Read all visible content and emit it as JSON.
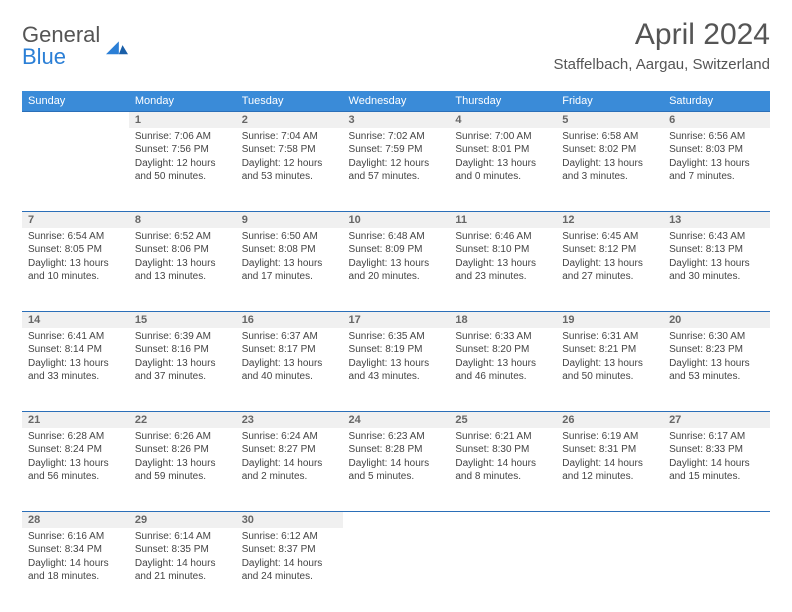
{
  "logo": {
    "word1": "General",
    "word2": "Blue"
  },
  "title": "April 2024",
  "location": "Staffelbach, Aargau, Switzerland",
  "colors": {
    "header_bg": "#3a8bd8",
    "header_text": "#ffffff",
    "daynum_bg": "#f0f0f0",
    "row_border": "#2b6fb8",
    "text": "#444444",
    "logo_blue": "#2b7fd6"
  },
  "weekdays": [
    "Sunday",
    "Monday",
    "Tuesday",
    "Wednesday",
    "Thursday",
    "Friday",
    "Saturday"
  ],
  "weeks": [
    [
      null,
      {
        "n": "1",
        "sr": "7:06 AM",
        "ss": "7:56 PM",
        "dl": "12 hours and 50 minutes."
      },
      {
        "n": "2",
        "sr": "7:04 AM",
        "ss": "7:58 PM",
        "dl": "12 hours and 53 minutes."
      },
      {
        "n": "3",
        "sr": "7:02 AM",
        "ss": "7:59 PM",
        "dl": "12 hours and 57 minutes."
      },
      {
        "n": "4",
        "sr": "7:00 AM",
        "ss": "8:01 PM",
        "dl": "13 hours and 0 minutes."
      },
      {
        "n": "5",
        "sr": "6:58 AM",
        "ss": "8:02 PM",
        "dl": "13 hours and 3 minutes."
      },
      {
        "n": "6",
        "sr": "6:56 AM",
        "ss": "8:03 PM",
        "dl": "13 hours and 7 minutes."
      }
    ],
    [
      {
        "n": "7",
        "sr": "6:54 AM",
        "ss": "8:05 PM",
        "dl": "13 hours and 10 minutes."
      },
      {
        "n": "8",
        "sr": "6:52 AM",
        "ss": "8:06 PM",
        "dl": "13 hours and 13 minutes."
      },
      {
        "n": "9",
        "sr": "6:50 AM",
        "ss": "8:08 PM",
        "dl": "13 hours and 17 minutes."
      },
      {
        "n": "10",
        "sr": "6:48 AM",
        "ss": "8:09 PM",
        "dl": "13 hours and 20 minutes."
      },
      {
        "n": "11",
        "sr": "6:46 AM",
        "ss": "8:10 PM",
        "dl": "13 hours and 23 minutes."
      },
      {
        "n": "12",
        "sr": "6:45 AM",
        "ss": "8:12 PM",
        "dl": "13 hours and 27 minutes."
      },
      {
        "n": "13",
        "sr": "6:43 AM",
        "ss": "8:13 PM",
        "dl": "13 hours and 30 minutes."
      }
    ],
    [
      {
        "n": "14",
        "sr": "6:41 AM",
        "ss": "8:14 PM",
        "dl": "13 hours and 33 minutes."
      },
      {
        "n": "15",
        "sr": "6:39 AM",
        "ss": "8:16 PM",
        "dl": "13 hours and 37 minutes."
      },
      {
        "n": "16",
        "sr": "6:37 AM",
        "ss": "8:17 PM",
        "dl": "13 hours and 40 minutes."
      },
      {
        "n": "17",
        "sr": "6:35 AM",
        "ss": "8:19 PM",
        "dl": "13 hours and 43 minutes."
      },
      {
        "n": "18",
        "sr": "6:33 AM",
        "ss": "8:20 PM",
        "dl": "13 hours and 46 minutes."
      },
      {
        "n": "19",
        "sr": "6:31 AM",
        "ss": "8:21 PM",
        "dl": "13 hours and 50 minutes."
      },
      {
        "n": "20",
        "sr": "6:30 AM",
        "ss": "8:23 PM",
        "dl": "13 hours and 53 minutes."
      }
    ],
    [
      {
        "n": "21",
        "sr": "6:28 AM",
        "ss": "8:24 PM",
        "dl": "13 hours and 56 minutes."
      },
      {
        "n": "22",
        "sr": "6:26 AM",
        "ss": "8:26 PM",
        "dl": "13 hours and 59 minutes."
      },
      {
        "n": "23",
        "sr": "6:24 AM",
        "ss": "8:27 PM",
        "dl": "14 hours and 2 minutes."
      },
      {
        "n": "24",
        "sr": "6:23 AM",
        "ss": "8:28 PM",
        "dl": "14 hours and 5 minutes."
      },
      {
        "n": "25",
        "sr": "6:21 AM",
        "ss": "8:30 PM",
        "dl": "14 hours and 8 minutes."
      },
      {
        "n": "26",
        "sr": "6:19 AM",
        "ss": "8:31 PM",
        "dl": "14 hours and 12 minutes."
      },
      {
        "n": "27",
        "sr": "6:17 AM",
        "ss": "8:33 PM",
        "dl": "14 hours and 15 minutes."
      }
    ],
    [
      {
        "n": "28",
        "sr": "6:16 AM",
        "ss": "8:34 PM",
        "dl": "14 hours and 18 minutes."
      },
      {
        "n": "29",
        "sr": "6:14 AM",
        "ss": "8:35 PM",
        "dl": "14 hours and 21 minutes."
      },
      {
        "n": "30",
        "sr": "6:12 AM",
        "ss": "8:37 PM",
        "dl": "14 hours and 24 minutes."
      },
      null,
      null,
      null,
      null
    ]
  ],
  "labels": {
    "sunrise": "Sunrise: ",
    "sunset": "Sunset: ",
    "daylight": "Daylight: "
  }
}
